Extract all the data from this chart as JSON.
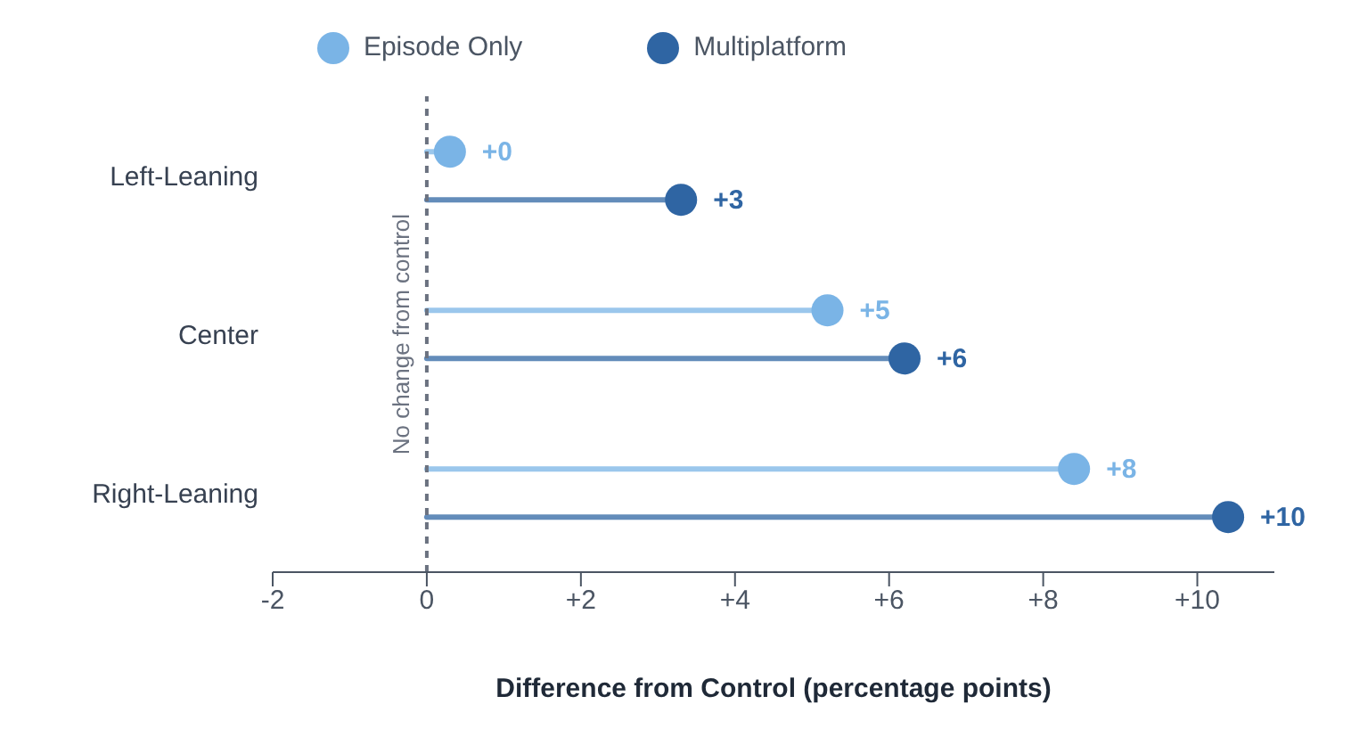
{
  "chart_data": {
    "type": "lollipop",
    "orientation": "horizontal",
    "categories": [
      "Left-Leaning",
      "Center",
      "Right-Leaning"
    ],
    "series": [
      {
        "name": "Episode Only",
        "color": "#7ab4e6",
        "values": [
          0.3,
          5.2,
          8.4
        ],
        "value_labels": [
          "+0",
          "+5",
          "+8"
        ]
      },
      {
        "name": "Multiplatform",
        "color": "#2f65a3",
        "values": [
          3.3,
          6.2,
          10.4
        ],
        "value_labels": [
          "+3",
          "+6",
          "+10"
        ]
      }
    ],
    "xlim": [
      -2,
      11
    ],
    "xticks": [
      -2,
      0,
      {
        "value": 2,
        "label": "+2"
      },
      {
        "value": 4,
        "label": "+4"
      },
      {
        "value": 6,
        "label": "+6"
      },
      {
        "value": 8,
        "label": "+8"
      },
      {
        "value": 10,
        "label": "+10"
      }
    ],
    "xlabel": "Difference from Control (percentage points)",
    "ref_lines": [
      {
        "axis": "x",
        "value": 0,
        "label": "No change from control",
        "color": "#6b7280",
        "line_style": "dashed"
      }
    ],
    "legend": "top",
    "grid": false,
    "marker": "circle"
  }
}
